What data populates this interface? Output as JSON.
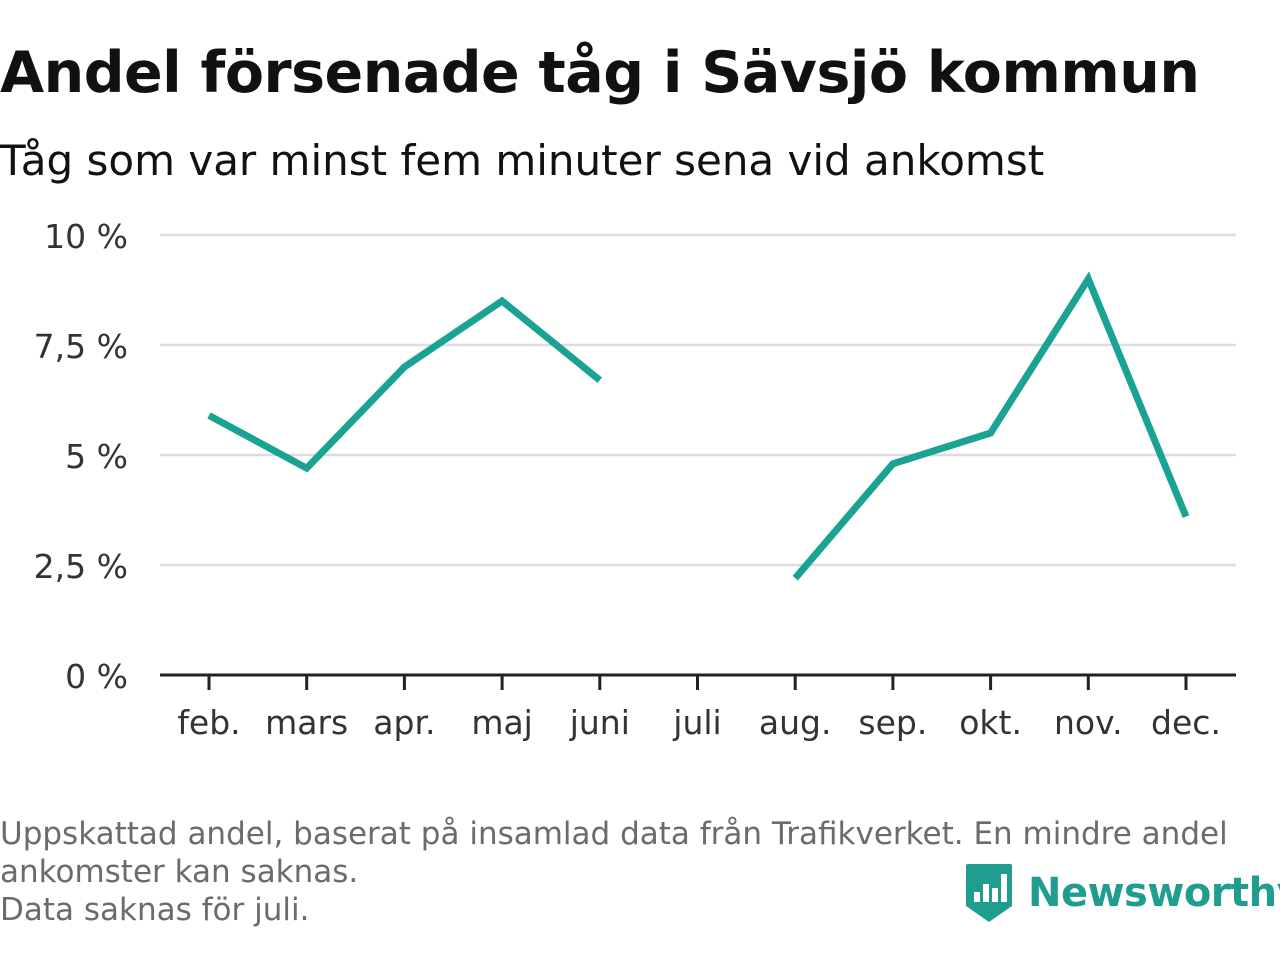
{
  "header": {
    "title": "Andel försenade tåg i Sävsjö kommun",
    "subtitle": "Tåg som var minst fem minuter sena vid ankomst"
  },
  "chart_data": {
    "type": "line",
    "categories": [
      "feb.",
      "mars",
      "apr.",
      "maj",
      "juni",
      "juli",
      "aug.",
      "sep.",
      "okt.",
      "nov.",
      "dec."
    ],
    "series": [
      {
        "values": [
          5.9,
          4.7,
          7.0,
          8.5,
          6.7,
          null,
          2.2,
          4.8,
          5.5,
          9.0,
          3.6
        ]
      }
    ],
    "yticks": [
      "0 %",
      "2,5 %",
      "5 %",
      "7,5 %",
      "10 %"
    ],
    "ylim": [
      0,
      10
    ],
    "grid": true,
    "line_color": "#1aa392"
  },
  "footnote": {
    "line1": "Uppskattad andel, baserat på insamlad data från Trafikverket. En mindre andel",
    "line2": "ankomster kan saknas.",
    "line3": "Data saknas för juli."
  },
  "logo": {
    "text": "Newsworthy",
    "icon": "newsworthy-logo-icon",
    "color": "#1f9e8f"
  }
}
